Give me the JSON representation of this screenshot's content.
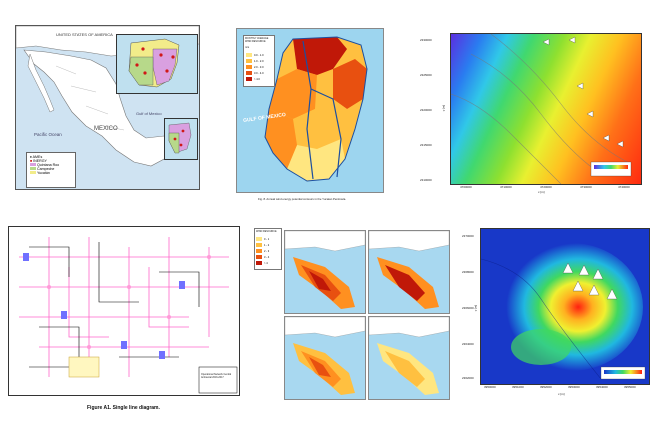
{
  "panels": {
    "mexico_map": {
      "country_label": "UNITED STATES OF AMERICA",
      "mexico_label": "MEXICO",
      "pacific_label": "Pacific Ocean",
      "gulf_label": "Gulf of Mexico",
      "legend": [
        "AMEs",
        "INERGY",
        "Quintana Roo",
        "Campeche",
        "Yucatán"
      ],
      "colors": {
        "quintana_roo": "#d9a0e0",
        "campeche": "#b7d98a",
        "yucatan": "#f2ec8a"
      }
    },
    "yucatan_wind": {
      "legend_title": "MONTHLY AVERAGE WIND RESOURCE",
      "legend_unit": "m/s",
      "legend_items": [
        "0.0 - 1.0",
        "1.0 - 2.0",
        "2.0 - 3.0",
        "3.0 - 4.0",
        "> 4.0"
      ],
      "legend_colors": [
        "#ffe680",
        "#ffc040",
        "#ff9020",
        "#e85010",
        "#c01808"
      ],
      "gulf_label": "GULF OF MEXICO",
      "caption": "Fig. 8. Annual wind energy potential contours in the Yucatan Peninsula."
    },
    "wind_field_top": {
      "y_ticks": [
        "2330000",
        "2325000",
        "2320000",
        "2315000",
        "2310000"
      ],
      "x_ticks": [
        "4700000",
        "4710000",
        "4720000",
        "4730000",
        "4740000"
      ],
      "xlabel": "x [m]",
      "ylabel": "y [m]"
    },
    "single_line": {
      "caption": "Figure A1. Single line diagram.",
      "title_block": "Operational Network Central Ambiental 2016-2017"
    },
    "four_maps": {
      "legend_title": "WIND RESOURCE",
      "legend_items": [
        "0 - 1",
        "1 - 2",
        "2 - 3",
        "3 - 4",
        "> 4"
      ],
      "legend_colors": [
        "#ffe680",
        "#ffc040",
        "#ff9020",
        "#e85010",
        "#c01808"
      ]
    },
    "wind_field_bottom": {
      "y_ticks": [
        "2370000",
        "2368000",
        "2366000",
        "2364000",
        "2362000"
      ],
      "x_ticks": [
        "3950000",
        "3951000",
        "3952000",
        "3953000",
        "3954000",
        "3955000"
      ],
      "xlabel": "x [m]",
      "ylabel": "y [m]"
    }
  }
}
